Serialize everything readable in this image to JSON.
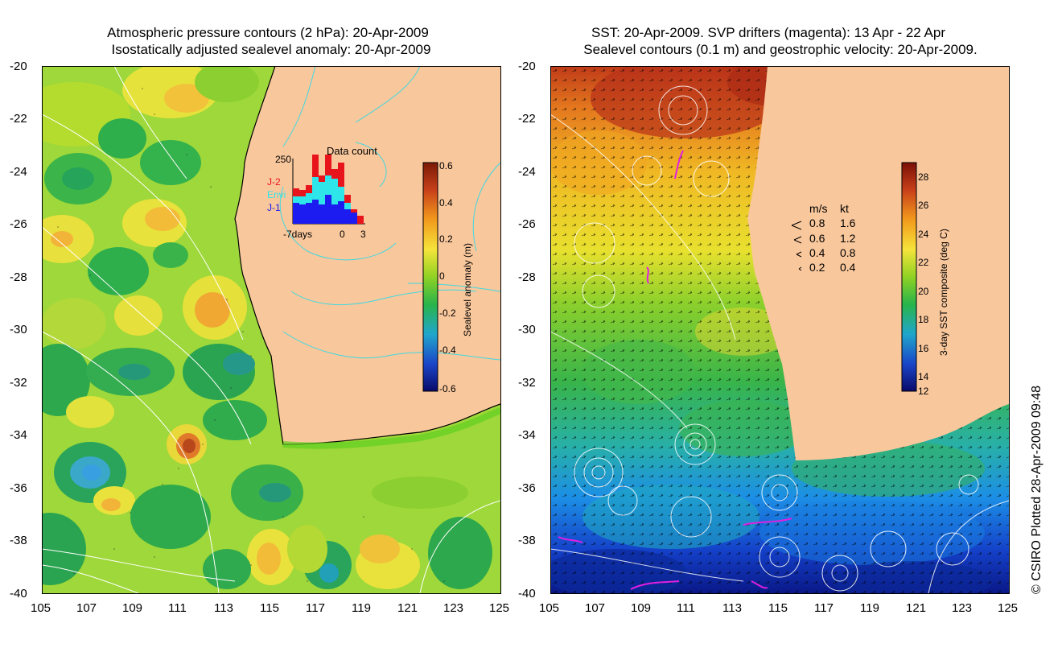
{
  "left_panel": {
    "title_line1": "Atmospheric pressure contours (2 hPa): 20-Apr-2009",
    "title_line2": "Isostatically adjusted sealevel anomaly: 20-Apr-2009",
    "y_ticks": [
      "-20",
      "-22",
      "-24",
      "-26",
      "-28",
      "-30",
      "-32",
      "-34",
      "-36",
      "-38",
      "-40"
    ],
    "x_ticks": [
      "105",
      "107",
      "109",
      "111",
      "113",
      "115",
      "117",
      "119",
      "121",
      "123",
      "125"
    ],
    "inset": {
      "title": "Data count",
      "y_max_label": "250",
      "x_labels": [
        "-7days",
        "0",
        "3"
      ],
      "legend": [
        {
          "label": "J-2",
          "color": "#e8141c"
        },
        {
          "label": "Envi",
          "color": "#2ee6ea"
        },
        {
          "label": "J-1",
          "color": "#1c1cf0"
        }
      ]
    },
    "colorbar": {
      "label": "Sealevel anomaly (m)",
      "ticks": [
        "0.6",
        "0.4",
        "0.2",
        "0",
        "-0.2",
        "-0.4",
        "-0.6"
      ]
    }
  },
  "right_panel": {
    "title_line1": "SST: 20-Apr-2009. SVP drifters (magenta): 13 Apr - 22 Apr",
    "title_line2": "Sealevel contours (0.1 m) and geostrophic velocity: 20-Apr-2009.",
    "y_ticks": [
      "-20",
      "-22",
      "-24",
      "-26",
      "-28",
      "-30",
      "-32",
      "-34",
      "-36",
      "-38",
      "-40"
    ],
    "x_ticks": [
      "105",
      "107",
      "109",
      "111",
      "113",
      "115",
      "117",
      "119",
      "121",
      "123",
      "125"
    ],
    "velocity_legend": {
      "header_ms": "m/s",
      "header_kt": "kt",
      "rows": [
        {
          "ms": "0.8",
          "kt": "1.6"
        },
        {
          "ms": "0.6",
          "kt": "1.2"
        },
        {
          "ms": "0.4",
          "kt": "0.8"
        },
        {
          "ms": "0.2",
          "kt": "0.4"
        }
      ]
    },
    "colorbar": {
      "label": "3-day SST composite (deg C)",
      "ticks": [
        "28",
        "26",
        "24",
        "22",
        "20",
        "18",
        "16",
        "14",
        "12"
      ]
    }
  },
  "credit": "© CSIRO Plotted 28-Apr-2009 09:48",
  "colors": {
    "land": "#f9c79c",
    "land_contour": "#40d8e0",
    "drifter": "#e020e0"
  }
}
